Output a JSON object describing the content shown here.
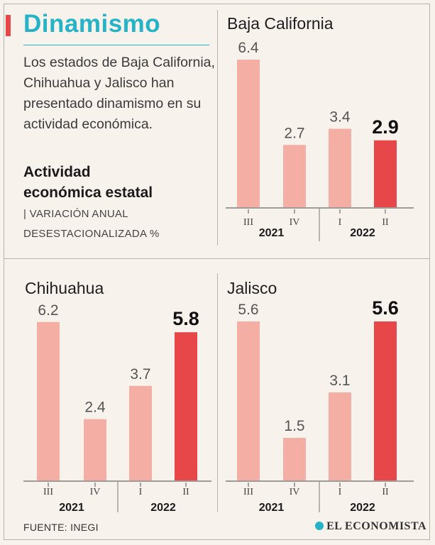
{
  "header": {
    "title": "Dinamismo",
    "intro": "Los estados de Baja California, Chihuahua y Jalisco han presentado dinamismo en su actividad económica.",
    "subtitle_line1": "Actividad",
    "subtitle_line2": "económica estatal",
    "note_line1": "| VARIACIÓN ANUAL",
    "note_line2": "DESESTACIONALIZADA %"
  },
  "footer": {
    "source": "FUENTE: INEGI",
    "brand": "EL ECONOMISTA"
  },
  "colors": {
    "bar": "#f4aea4",
    "highlight": "#e8474a",
    "accent": "#24b3c7"
  },
  "chart_data": [
    {
      "type": "bar",
      "title": "Baja California",
      "categories": [
        "III",
        "IV",
        "I",
        "II"
      ],
      "groups": [
        {
          "label": "2021",
          "categories": [
            "III",
            "IV"
          ]
        },
        {
          "label": "2022",
          "categories": [
            "I",
            "II"
          ]
        }
      ],
      "values": [
        6.4,
        2.7,
        3.4,
        2.9
      ],
      "value_labels": [
        "6.4",
        "2.7",
        "3.4",
        "2.9"
      ],
      "highlight_index": 3,
      "xlabel": "",
      "ylabel": "Variación anual desestacionalizada %"
    },
    {
      "type": "bar",
      "title": "Chihuahua",
      "categories": [
        "III",
        "IV",
        "I",
        "II"
      ],
      "groups": [
        {
          "label": "2021",
          "categories": [
            "III",
            "IV"
          ]
        },
        {
          "label": "2022",
          "categories": [
            "I",
            "II"
          ]
        }
      ],
      "values": [
        6.2,
        2.4,
        3.7,
        5.8
      ],
      "value_labels": [
        "6.2",
        "2.4",
        "3.7",
        "5.8"
      ],
      "highlight_index": 3,
      "xlabel": "",
      "ylabel": "Variación anual desestacionalizada %"
    },
    {
      "type": "bar",
      "title": "Jalisco",
      "categories": [
        "III",
        "IV",
        "I",
        "II"
      ],
      "groups": [
        {
          "label": "2021",
          "categories": [
            "III",
            "IV"
          ]
        },
        {
          "label": "2022",
          "categories": [
            "I",
            "II"
          ]
        }
      ],
      "values": [
        5.6,
        1.5,
        3.1,
        5.6
      ],
      "value_labels": [
        "5.6",
        "1.5",
        "3.1",
        "5.6"
      ],
      "highlight_index": 3,
      "xlabel": "",
      "ylabel": "Variación anual desestacionalizada %"
    }
  ]
}
